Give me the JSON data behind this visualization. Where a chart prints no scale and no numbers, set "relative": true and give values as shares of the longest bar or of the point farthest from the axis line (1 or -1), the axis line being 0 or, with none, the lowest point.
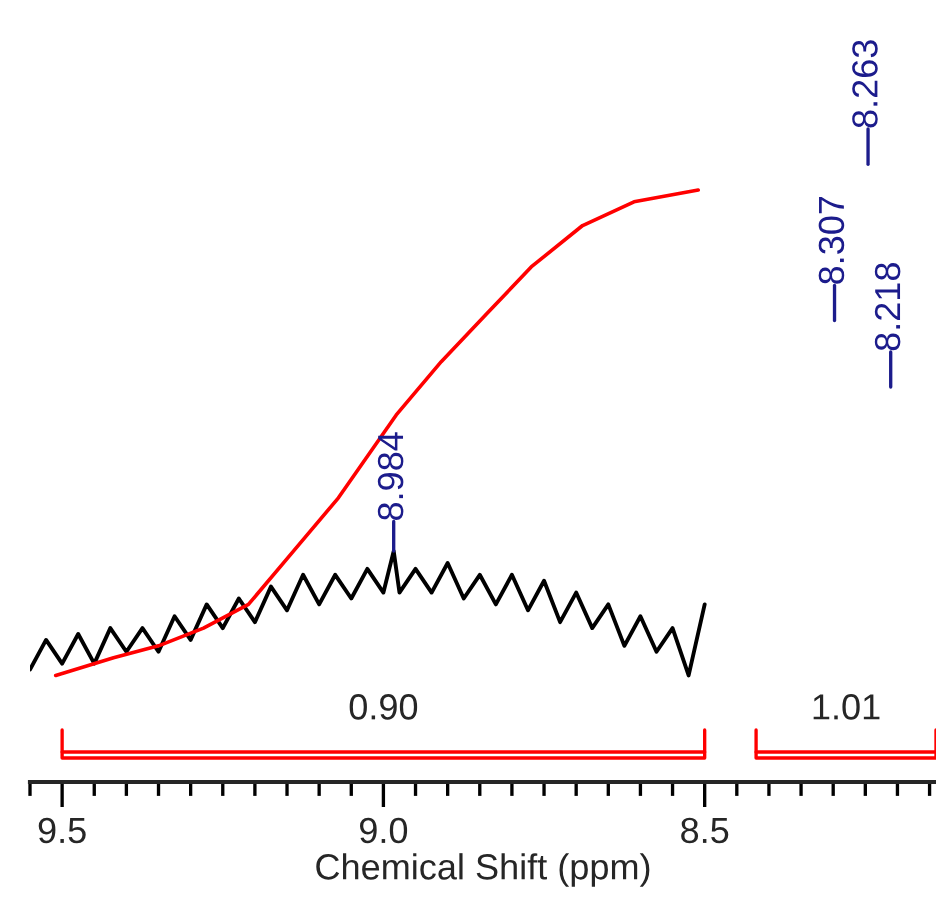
{
  "chart_data": {
    "type": "line",
    "relative": true,
    "xlabel": "Chemical Shift (ppm)",
    "xlim": [
      9.55,
      8.14
    ],
    "xticks": [
      9.5,
      {
        "value": 9.0,
        "label": "9.0"
      },
      8.5
    ],
    "tick_labels": "x",
    "grid": false,
    "legend": false,
    "marker": "none",
    "line_style": "solid",
    "series": [
      {
        "color": "#000000",
        "x": [
          9.55,
          9.525,
          9.5,
          9.475,
          9.45,
          9.425,
          9.4,
          9.375,
          9.35,
          9.325,
          9.3,
          9.275,
          9.25,
          9.225,
          9.2,
          9.175,
          9.15,
          9.125,
          9.1,
          9.075,
          9.05,
          9.025,
          9.0,
          8.984,
          8.975,
          8.95,
          8.925,
          8.9,
          8.875,
          8.85,
          8.825,
          8.8,
          8.775,
          8.75,
          8.725,
          8.7,
          8.675,
          8.65,
          8.625,
          8.6,
          8.575,
          8.55,
          8.525,
          8.5
        ],
        "values": [
          0.19,
          0.24,
          0.2,
          0.25,
          0.2,
          0.26,
          0.22,
          0.26,
          0.22,
          0.28,
          0.24,
          0.3,
          0.26,
          0.31,
          0.27,
          0.33,
          0.29,
          0.35,
          0.3,
          0.35,
          0.31,
          0.36,
          0.32,
          0.39,
          0.32,
          0.36,
          0.32,
          0.37,
          0.31,
          0.35,
          0.3,
          0.35,
          0.29,
          0.34,
          0.27,
          0.32,
          0.26,
          0.3,
          0.23,
          0.28,
          0.22,
          0.26,
          0.18,
          0.3
        ]
      },
      {
        "color": "#ff0000",
        "x": [
          9.51,
          9.42,
          9.35,
          9.28,
          9.21,
          9.14,
          9.07,
          8.98,
          8.91,
          8.84,
          8.77,
          8.69,
          8.61,
          8.51
        ],
        "values": [
          0.18,
          0.21,
          0.23,
          0.26,
          0.3,
          0.39,
          0.48,
          0.62,
          0.71,
          0.79,
          0.87,
          0.94,
          0.98,
          1.0
        ]
      }
    ],
    "annotations": [
      {
        "text": "8.984",
        "x": 8.984,
        "y": 0.39
      },
      "8.307",
      "8.263",
      "8.218",
      "0.90",
      "1.01"
    ]
  }
}
